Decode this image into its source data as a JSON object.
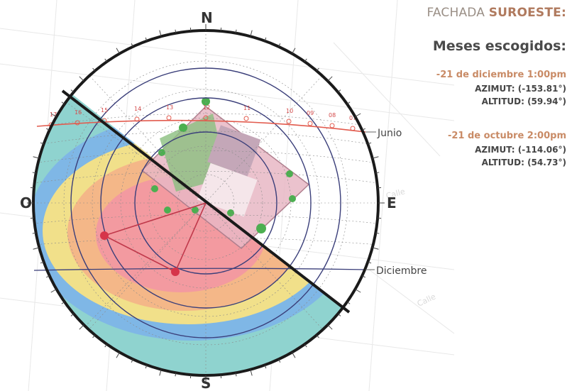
{
  "diagram": {
    "compass": {
      "north": "N",
      "south": "S",
      "east": "E",
      "west": "O"
    },
    "sun_paths": {
      "june": "Junio",
      "december": "Diciembre"
    },
    "june_hours": [
      "17",
      "16",
      "15",
      "14",
      "13",
      "12",
      "11",
      "10",
      "09",
      "08",
      "07"
    ],
    "street_label": "Calle",
    "colors": {
      "outer_ring": "#1a1a1a",
      "altitude_ring": "#3b3f7a",
      "sun_path": "#e25b4e",
      "cut_line": "#1a1a1a",
      "zone_cyan": "#8fd3cf",
      "zone_blue": "#7fb7e6",
      "zone_yellow": "#f1e08a",
      "zone_orange": "#f4b788",
      "zone_pink": "#f39aa0",
      "building": "#e7b7c4"
    }
  },
  "panel": {
    "facade_prefix": "FACHADA ",
    "facade_name": "SUROESTE:",
    "months_title": "Meses escogidos:",
    "entries": [
      {
        "date": "-21 de diciembre 1:00pm",
        "azimuth": "AZIMUT: (-153.81°)",
        "altitude": "ALTITUD: (59.94°)"
      },
      {
        "date": "-21 de octubre 2:00pm",
        "azimuth": "AZIMUT: (-114.06°)",
        "altitude": "ALTITUD: (54.73°)"
      }
    ]
  }
}
